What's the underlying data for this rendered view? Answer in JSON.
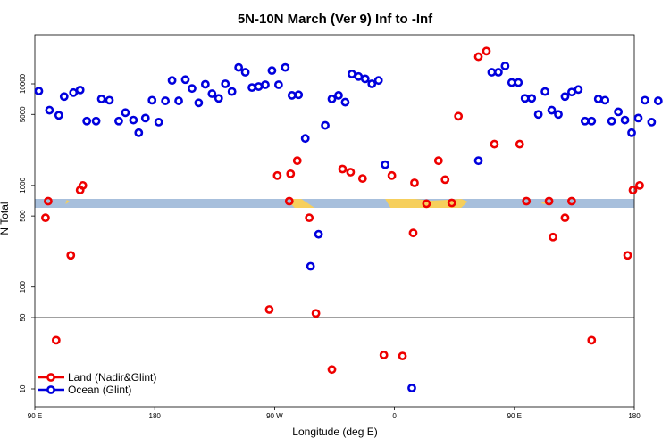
{
  "chart_data": {
    "type": "scatter",
    "title": "5N-10N March (Ver 9)   Inf to -Inf",
    "xlabel": "Longitude (deg E)",
    "ylabel": "N Total",
    "y_scale": "log",
    "x_ticks": [
      {
        "value": 90,
        "label": "90 E"
      },
      {
        "value": 180,
        "label": "180"
      },
      {
        "value": 270,
        "label": "90 W"
      },
      {
        "value": 360,
        "label": "0"
      },
      {
        "value": 450,
        "label": "90 E"
      },
      {
        "value": 540,
        "label": "180"
      }
    ],
    "y_ticks": [
      10,
      50,
      100,
      500,
      1000,
      5000,
      10000
    ],
    "xlim": [
      90,
      540
    ],
    "upper_panel_ylim": [
      50,
      40000
    ],
    "lower_panel_ylim": [
      6,
      50
    ],
    "legend_position": "bottom-left",
    "colors": {
      "land": "#ee0000",
      "ocean": "#0000dd",
      "band": "#a7bfdc",
      "landmass": "#f6cf5c"
    },
    "series": [
      {
        "name": "Land (Nadir&Glint)",
        "color": "#ee0000",
        "points": [
          [
            98,
            480
          ],
          [
            100,
            700
          ],
          [
            106,
            30
          ],
          [
            117,
            205
          ],
          [
            124,
            900
          ],
          [
            126,
            1000
          ],
          [
            272,
            1250
          ],
          [
            281,
            700
          ],
          [
            282,
            1300
          ],
          [
            287,
            1750
          ],
          [
            296,
            480
          ],
          [
            301,
            55
          ],
          [
            313,
            15.5
          ],
          [
            327,
            1350
          ],
          [
            321,
            1450
          ],
          [
            336,
            1170
          ],
          [
            358,
            1250
          ],
          [
            366,
            21
          ],
          [
            375,
            1060
          ],
          [
            374,
            340
          ],
          [
            384,
            660
          ],
          [
            393,
            1750
          ],
          [
            398,
            1140
          ],
          [
            403,
            672
          ],
          [
            408,
            4800
          ],
          [
            423,
            18500
          ],
          [
            429,
            21000
          ],
          [
            435,
            2550
          ],
          [
            454,
            2550
          ],
          [
            476,
            700
          ],
          [
            488,
            480
          ],
          [
            493,
            700
          ],
          [
            508,
            30
          ],
          [
            535,
            205
          ],
          [
            539,
            900
          ],
          [
            544,
            1000
          ],
          [
            266,
            60
          ],
          [
            352,
            21.5
          ],
          [
            459,
            700
          ],
          [
            479,
            310
          ]
        ]
      },
      {
        "name": "Ocean (Glint)",
        "color": "#0000dd",
        "points": [
          [
            93,
            8500
          ],
          [
            101,
            5500
          ],
          [
            108,
            4900
          ],
          [
            112,
            7500
          ],
          [
            119,
            8200
          ],
          [
            124,
            8700
          ],
          [
            129,
            4300
          ],
          [
            136,
            4300
          ],
          [
            140,
            7100
          ],
          [
            146,
            6900
          ],
          [
            153,
            4300
          ],
          [
            158,
            5200
          ],
          [
            164,
            4400
          ],
          [
            168,
            3300
          ],
          [
            173,
            4600
          ],
          [
            178,
            6900
          ],
          [
            183,
            4200
          ],
          [
            188,
            6800
          ],
          [
            193,
            10800
          ],
          [
            198,
            6800
          ],
          [
            203,
            11000
          ],
          [
            208,
            9000
          ],
          [
            213,
            6500
          ],
          [
            218,
            9900
          ],
          [
            223,
            8000
          ],
          [
            228,
            7200
          ],
          [
            233,
            10000
          ],
          [
            238,
            8400
          ],
          [
            243,
            14500
          ],
          [
            248,
            13000
          ],
          [
            253,
            9200
          ],
          [
            258,
            9400
          ],
          [
            263,
            9800
          ],
          [
            268,
            13500
          ],
          [
            273,
            9800
          ],
          [
            278,
            14500
          ],
          [
            283,
            7700
          ],
          [
            288,
            7800
          ],
          [
            293,
            2900
          ],
          [
            297,
            160
          ],
          [
            303,
            330
          ],
          [
            308,
            3900
          ],
          [
            313,
            7100
          ],
          [
            318,
            7700
          ],
          [
            323,
            6600
          ],
          [
            328,
            12500
          ],
          [
            333,
            11800
          ],
          [
            338,
            11200
          ],
          [
            343,
            10000
          ],
          [
            348,
            10800
          ],
          [
            353,
            1600
          ],
          [
            423,
            1750
          ],
          [
            433,
            13000
          ],
          [
            438,
            13000
          ],
          [
            443,
            15000
          ],
          [
            448,
            10300
          ],
          [
            453,
            10300
          ],
          [
            458,
            7200
          ],
          [
            463,
            7200
          ],
          [
            468,
            5000
          ],
          [
            473,
            8400
          ],
          [
            478,
            5500
          ],
          [
            483,
            5000
          ],
          [
            488,
            7500
          ],
          [
            493,
            8300
          ],
          [
            498,
            8800
          ],
          [
            503,
            4300
          ],
          [
            508,
            4300
          ],
          [
            513,
            7100
          ],
          [
            518,
            6900
          ],
          [
            523,
            4300
          ],
          [
            528,
            5300
          ],
          [
            533,
            4400
          ],
          [
            538,
            3300
          ],
          [
            543,
            4600
          ],
          [
            548,
            6900
          ],
          [
            553,
            4200
          ],
          [
            558,
            6800
          ],
          [
            373,
            10.2
          ]
        ]
      }
    ]
  }
}
